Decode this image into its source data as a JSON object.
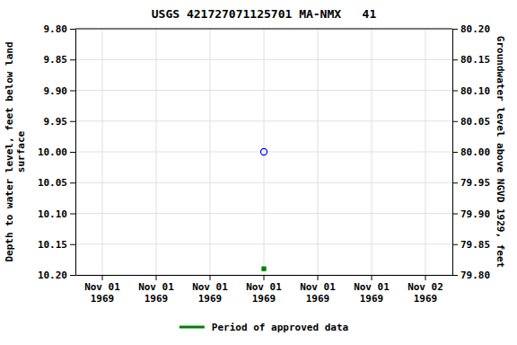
{
  "chart_data": {
    "type": "scatter",
    "title": "USGS 421727071125701 MA-NMX   41",
    "categories": [
      "Nov 01\n1969",
      "Nov 01\n1969",
      "Nov 01\n1969",
      "Nov 01\n1969",
      "Nov 01\n1969",
      "Nov 01\n1969",
      "Nov 02\n1969"
    ],
    "y_label": "Depth to water level, feet below land\nsurface",
    "y2_label": "Groundwater level above NGVD 1929, feet",
    "ylim": [
      10.2,
      9.8
    ],
    "yticks": [
      {
        "value": 9.8,
        "label": "9.80"
      },
      {
        "value": 9.85,
        "label": "9.85"
      },
      {
        "value": 9.9,
        "label": "9.90"
      },
      {
        "value": 9.95,
        "label": "9.95"
      },
      {
        "value": 10.0,
        "label": "10.00"
      },
      {
        "value": 10.05,
        "label": "10.05"
      },
      {
        "value": 10.1,
        "label": "10.10"
      },
      {
        "value": 10.15,
        "label": "10.15"
      },
      {
        "value": 10.2,
        "label": "10.20"
      }
    ],
    "y2lim": [
      79.8,
      80.2
    ],
    "y2ticks": [
      {
        "value": 80.2,
        "label": "80.20"
      },
      {
        "value": 80.15,
        "label": "80.15"
      },
      {
        "value": 80.1,
        "label": "80.10"
      },
      {
        "value": 80.05,
        "label": "80.05"
      },
      {
        "value": 80.0,
        "label": "80.00"
      },
      {
        "value": 79.95,
        "label": "79.95"
      },
      {
        "value": 79.9,
        "label": "79.90"
      },
      {
        "value": 79.85,
        "label": "79.85"
      },
      {
        "value": 79.8,
        "label": "79.80"
      }
    ],
    "grid": true,
    "legend": "bottom",
    "series": [
      {
        "color": "blue",
        "marker": "circle",
        "values": [
          null,
          null,
          null,
          10.0,
          null,
          null,
          null
        ]
      },
      {
        "name": "Period of approved data",
        "color": "green",
        "marker": "square",
        "values": [
          null,
          null,
          null,
          10.19,
          null,
          null,
          null
        ]
      }
    ]
  }
}
